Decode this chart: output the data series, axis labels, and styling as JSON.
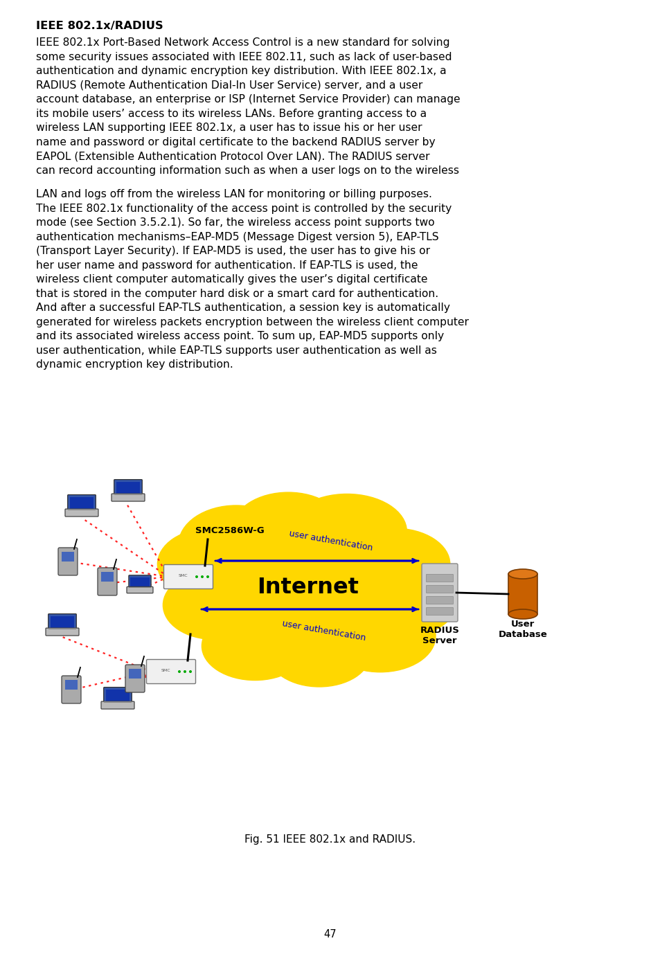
{
  "background_color": "#ffffff",
  "page_number": "47",
  "title": "IEEE 802.1x/RADIUS",
  "para1_lines": [
    "IEEE 802.1x Port-Based Network Access Control is a new standard for solving",
    "some security issues associated with IEEE 802.11, such as lack of user-based",
    "authentication and dynamic encryption key distribution. With IEEE 802.1x, a",
    "RADIUS (Remote Authentication Dial-In User Service) server, and a user",
    "account database, an enterprise or ISP (Internet Service Provider) can manage",
    "its mobile users’ access to its wireless LANs. Before granting access to a",
    "wireless LAN supporting IEEE 802.1x, a user has to issue his or her user",
    "name and password or digital certificate to the backend RADIUS server by",
    "EAPOL (Extensible Authentication Protocol Over LAN). The RADIUS server",
    "can record accounting information such as when a user logs on to the wireless"
  ],
  "para2_lines": [
    "LAN and logs off from the wireless LAN for monitoring or billing purposes.",
    "The IEEE 802.1x functionality of the access point is controlled by the security",
    "mode (see Section 3.5.2.1). So far, the wireless access point supports two",
    "authentication mechanisms–EAP-MD5 (Message Digest version 5), EAP-TLS",
    "(Transport Layer Security). If EAP-MD5 is used, the user has to give his or",
    "her user name and password for authentication. If EAP-TLS is used, the",
    "wireless client computer automatically gives the user’s digital certificate",
    "that is stored in the computer hard disk or a smart card for authentication.",
    "And after a successful EAP-TLS authentication, a session key is automatically",
    "generated for wireless packets encryption between the wireless client computer",
    "and its associated wireless access point. To sum up, EAP-MD5 supports only",
    "user authentication, while EAP-TLS supports user authentication as well as",
    "dynamic encryption key distribution."
  ],
  "fig_caption": "Fig. 51 IEEE 802.1x and RADIUS.",
  "cloud_color": "#FFD700",
  "internet_text": "Internet",
  "arrow_color": "#0000CC",
  "auth_text": "user authentication",
  "smc_label": "SMC2586W-G",
  "radius_label": "RADIUS\nServer",
  "user_db_label": "User\nDatabase",
  "body_fontsize": 11.2,
  "title_fontsize": 11.8
}
